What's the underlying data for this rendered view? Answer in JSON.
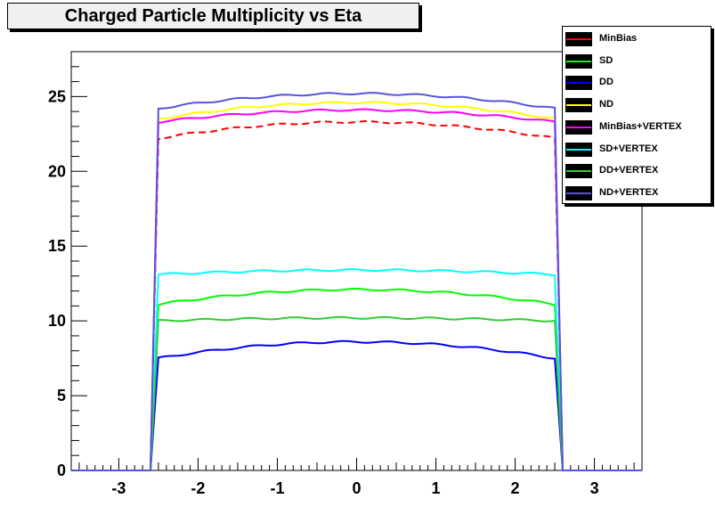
{
  "chart_data": {
    "type": "line",
    "title": "Charged Particle Multiplicity vs Eta",
    "xlim": [
      -3.6,
      3.6
    ],
    "ylim": [
      0,
      28
    ],
    "x_ticks": [
      "-3",
      "-2",
      "-1",
      "0",
      "1",
      "2",
      "3"
    ],
    "y_ticks": [
      "0",
      "5",
      "10",
      "15",
      "20",
      "25"
    ],
    "eta_edge": 2.5,
    "legend_position": "top-right",
    "series": [
      {
        "name": "MinBias",
        "color": "#ff0000",
        "dashed": true,
        "edge": 22.2,
        "center": 23.3
      },
      {
        "name": "SD",
        "color": "#00ff00",
        "dashed": false,
        "edge": 11.1,
        "center": 12.1
      },
      {
        "name": "DD",
        "color": "#0000ff",
        "dashed": false,
        "edge": 7.5,
        "center": 8.6
      },
      {
        "name": "ND",
        "color": "#ffff00",
        "dashed": false,
        "edge": 23.5,
        "center": 24.6
      },
      {
        "name": "MinBias+VERTEX",
        "color": "#ff00ff",
        "dashed": false,
        "edge": 23.3,
        "center": 24.1
      },
      {
        "name": "SD+VERTEX",
        "color": "#00ffff",
        "dashed": false,
        "edge": 13.1,
        "center": 13.4
      },
      {
        "name": "DD+VERTEX",
        "color": "#33cc33",
        "dashed": false,
        "edge": 10.0,
        "center": 10.2
      },
      {
        "name": "ND+VERTEX",
        "color": "#5555dd",
        "dashed": false,
        "edge": 24.2,
        "center": 25.2
      }
    ]
  }
}
